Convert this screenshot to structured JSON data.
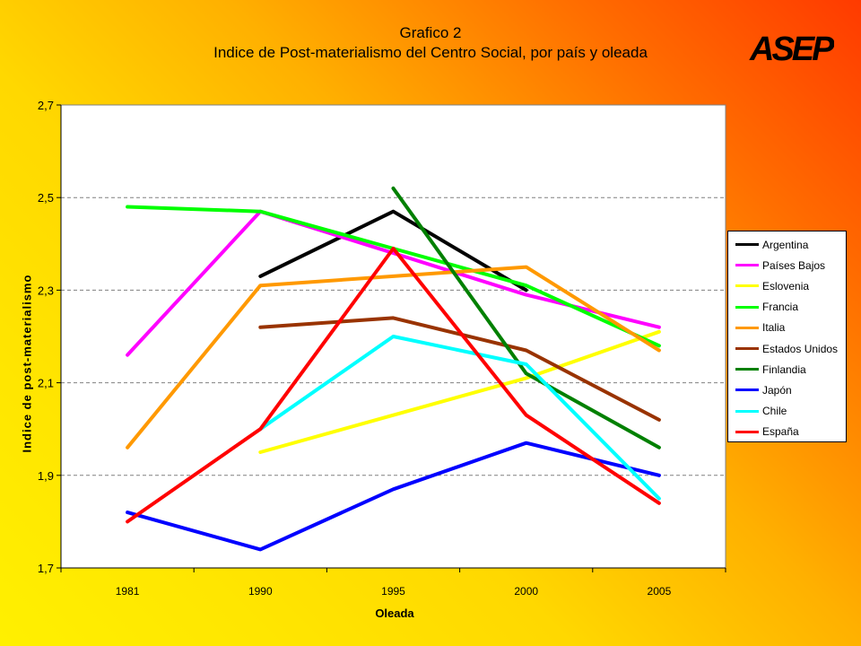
{
  "title_line1": "Grafico 2",
  "title_line2": "Indice de Post-materialismo del Centro Social, por país y oleada",
  "logo_text": "ASEP",
  "chart_data": {
    "type": "line",
    "title": "Indice de Post-materialismo del Centro Social, por país y oleada",
    "xlabel": "Oleada",
    "ylabel": "Indice de post-materialismo",
    "categories": [
      "1981",
      "1990",
      "1995",
      "2000",
      "2005"
    ],
    "ylim": [
      1.7,
      2.7
    ],
    "yticks": [
      "1,7",
      "1,9",
      "2,1",
      "2,3",
      "2,5",
      "2,7"
    ],
    "ytick_values": [
      1.7,
      1.9,
      2.1,
      2.3,
      2.5,
      2.7
    ],
    "grid": true,
    "legend_position": "right",
    "series": [
      {
        "name": "Argentina",
        "color": "#000000",
        "values": [
          null,
          2.33,
          2.47,
          2.3,
          null
        ]
      },
      {
        "name": "Países Bajos",
        "color": "#ff00ff",
        "values": [
          2.16,
          2.47,
          2.38,
          2.29,
          2.22
        ]
      },
      {
        "name": "Eslovenia",
        "color": "#ffff00",
        "values": [
          null,
          1.95,
          2.03,
          2.11,
          2.21
        ]
      },
      {
        "name": "Francia",
        "color": "#00ff00",
        "values": [
          2.48,
          2.47,
          2.39,
          2.31,
          2.18
        ]
      },
      {
        "name": "Italia",
        "color": "#ff9900",
        "values": [
          1.96,
          2.31,
          2.33,
          2.35,
          2.17
        ]
      },
      {
        "name": "Estados Unidos",
        "color": "#993300",
        "values": [
          null,
          2.22,
          2.24,
          2.17,
          2.02
        ]
      },
      {
        "name": "Finlandia",
        "color": "#008000",
        "values": [
          null,
          null,
          2.52,
          2.12,
          1.96
        ]
      },
      {
        "name": "Japón",
        "color": "#0000ff",
        "values": [
          1.82,
          1.74,
          1.87,
          1.97,
          1.9
        ]
      },
      {
        "name": "Chile",
        "color": "#00ffff",
        "values": [
          null,
          2.0,
          2.2,
          2.14,
          1.85
        ]
      },
      {
        "name": "España",
        "color": "#ff0000",
        "values": [
          1.8,
          2.0,
          2.39,
          2.03,
          1.84
        ]
      }
    ]
  }
}
